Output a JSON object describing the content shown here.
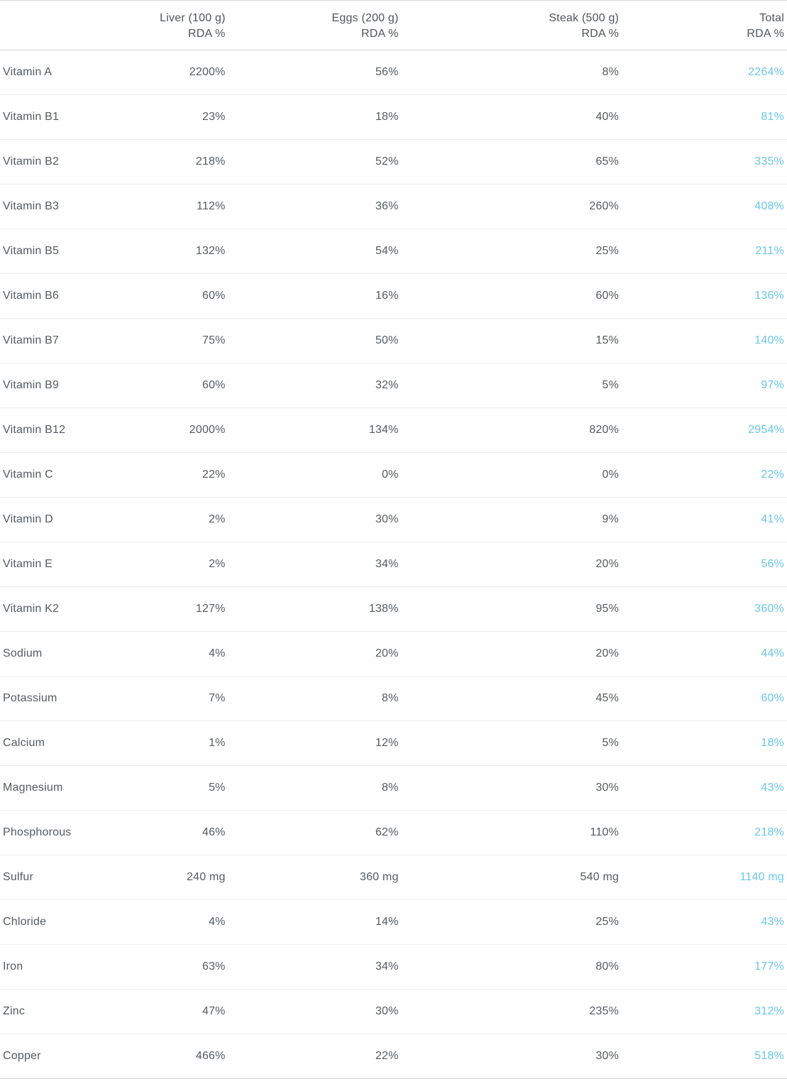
{
  "table": {
    "columns": [
      {
        "key": "name",
        "header": "",
        "class": "c-name"
      },
      {
        "key": "liver",
        "header": "Liver (100 g)\nRDA %",
        "class": "c-liver"
      },
      {
        "key": "eggs",
        "header": "Eggs  (200 g)\nRDA %",
        "class": "c-eggs"
      },
      {
        "key": "steak",
        "header": "Steak (500 g)\nRDA %",
        "class": "c-steak"
      },
      {
        "key": "total",
        "header": "Total\nRDA %",
        "class": "c-total",
        "is_total": true
      }
    ],
    "rows": [
      {
        "name": "Vitamin A",
        "liver": "2200%",
        "eggs": "56%",
        "steak": "8%",
        "total": "2264%"
      },
      {
        "name": "Vitamin B1",
        "liver": "23%",
        "eggs": "18%",
        "steak": "40%",
        "total": "81%"
      },
      {
        "name": "Vitamin B2",
        "liver": "218%",
        "eggs": "52%",
        "steak": "65%",
        "total": "335%"
      },
      {
        "name": "Vitamin B3",
        "liver": "112%",
        "eggs": "36%",
        "steak": "260%",
        "total": "408%"
      },
      {
        "name": "Vitamin B5",
        "liver": "132%",
        "eggs": "54%",
        "steak": "25%",
        "total": "211%"
      },
      {
        "name": "Vitamin B6",
        "liver": "60%",
        "eggs": "16%",
        "steak": "60%",
        "total": "136%"
      },
      {
        "name": "Vitamin B7",
        "liver": "75%",
        "eggs": "50%",
        "steak": "15%",
        "total": "140%"
      },
      {
        "name": "Vitamin B9",
        "liver": "60%",
        "eggs": "32%",
        "steak": "5%",
        "total": "97%"
      },
      {
        "name": "Vitamin B12",
        "liver": "2000%",
        "eggs": "134%",
        "steak": "820%",
        "total": "2954%"
      },
      {
        "name": "Vitamin C",
        "liver": "22%",
        "eggs": "0%",
        "steak": "0%",
        "total": "22%"
      },
      {
        "name": "Vitamin D",
        "liver": "2%",
        "eggs": "30%",
        "steak": "9%",
        "total": "41%"
      },
      {
        "name": "Vitamin E",
        "liver": "2%",
        "eggs": "34%",
        "steak": "20%",
        "total": "56%"
      },
      {
        "name": "Vitamin K2",
        "liver": "127%",
        "eggs": "138%",
        "steak": "95%",
        "total": "360%"
      },
      {
        "name": "Sodium",
        "liver": "4%",
        "eggs": "20%",
        "steak": "20%",
        "total": "44%"
      },
      {
        "name": "Potassium",
        "liver": "7%",
        "eggs": "8%",
        "steak": "45%",
        "total": "60%"
      },
      {
        "name": "Calcium",
        "liver": "1%",
        "eggs": "12%",
        "steak": "5%",
        "total": "18%"
      },
      {
        "name": "Magnesium",
        "liver": "5%",
        "eggs": "8%",
        "steak": "30%",
        "total": "43%"
      },
      {
        "name": "Phosphorous",
        "liver": "46%",
        "eggs": "62%",
        "steak": "110%",
        "total": "218%"
      },
      {
        "name": "Sulfur",
        "liver": "240 mg",
        "eggs": "360 mg",
        "steak": "540 mg",
        "total": "1140 mg"
      },
      {
        "name": "Chloride",
        "liver": "4%",
        "eggs": "14%",
        "steak": "25%",
        "total": "43%"
      },
      {
        "name": "Iron",
        "liver": "63%",
        "eggs": "34%",
        "steak": "80%",
        "total": "177%"
      },
      {
        "name": "Zinc",
        "liver": "47%",
        "eggs": "30%",
        "steak": "235%",
        "total": "312%"
      },
      {
        "name": "Copper",
        "liver": "466%",
        "eggs": "22%",
        "steak": "30%",
        "total": "518%"
      }
    ],
    "colors": {
      "text": "#555a60",
      "header_text": "#50545a",
      "total_text": "#6ac7e8",
      "border": "#d4d6d9",
      "divider": "#ebedef",
      "background": "#ffffff"
    },
    "font_size_pt": 12
  }
}
